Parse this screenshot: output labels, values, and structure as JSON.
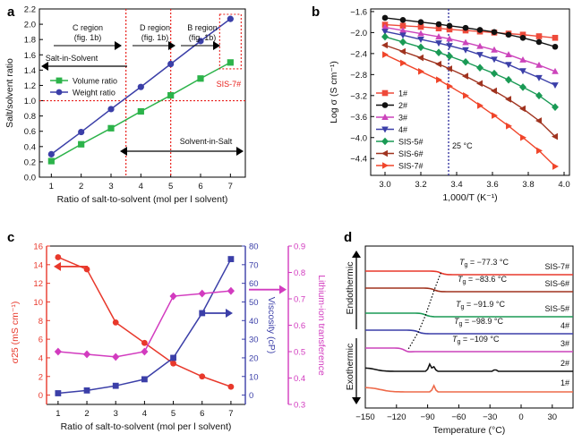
{
  "figure": {
    "panels": [
      "a",
      "b",
      "c",
      "d"
    ]
  },
  "chart_data": [
    {
      "panel": "a",
      "type": "line",
      "xlabel": "Ratio of salt-to-solvent (mol per l solvent)",
      "ylabel": "Salt/solvent ratio",
      "xlim": [
        0.6,
        7.5
      ],
      "ylim": [
        0,
        2.2
      ],
      "xticks": [
        1,
        2,
        3,
        4,
        5,
        6,
        7
      ],
      "yticks": [
        0,
        0.2,
        0.4,
        0.6,
        0.8,
        1.0,
        1.2,
        1.4,
        1.6,
        1.8,
        2.0,
        2.2
      ],
      "legend_position": "center-left",
      "series": [
        {
          "name": "Volume ratio",
          "color": "#2cb34a",
          "marker": "square",
          "x": [
            1,
            2,
            3,
            4,
            5,
            6,
            7
          ],
          "y": [
            0.21,
            0.43,
            0.64,
            0.86,
            1.07,
            1.29,
            1.5
          ]
        },
        {
          "name": "Weight ratio",
          "color": "#3b3fa8",
          "marker": "circle",
          "x": [
            1,
            2,
            3,
            4,
            5,
            6,
            7
          ],
          "y": [
            0.3,
            0.59,
            0.89,
            1.18,
            1.48,
            1.78,
            2.07
          ]
        }
      ],
      "annotations": {
        "c_region": "C region",
        "c_fig": "(fig. 1b)",
        "d_region": "D region",
        "d_fig": "(fig. 1b)",
        "b_region": "B region",
        "b_fig": "(fig. 1b)",
        "salt_in_solvent": "Salt-in-Solvent",
        "solvent_in_salt": "Solvent-in-Salt",
        "sis7": "SIS-7#"
      },
      "reference_lines": {
        "horizontal_y": 1.0,
        "vertical_x": [
          3.5,
          5.0
        ]
      }
    },
    {
      "panel": "b",
      "type": "line",
      "xlabel": "1,000/T (K⁻¹)",
      "ylabel": "Log σ (S cm⁻¹)",
      "xlim": [
        2.92,
        4.03
      ],
      "ylim": [
        -4.72,
        -1.55
      ],
      "xticks": [
        3.0,
        3.2,
        3.4,
        3.6,
        3.8,
        4.0
      ],
      "yticks": [
        -1.6,
        -2.0,
        -2.4,
        -2.8,
        -3.2,
        -3.6,
        -4.0,
        -4.4
      ],
      "legend_position": "bottom-left",
      "reference_line": {
        "x": 3.355,
        "label": "25 °C"
      },
      "series": [
        {
          "name": "1#",
          "color": "#ee4a3a",
          "marker": "square",
          "x": [
            3.0,
            3.1,
            3.2,
            3.3,
            3.36,
            3.45,
            3.53,
            3.61,
            3.69,
            3.77,
            3.86,
            3.95
          ],
          "y": [
            -1.85,
            -1.87,
            -1.89,
            -1.92,
            -1.94,
            -1.96,
            -1.98,
            -2.0,
            -2.02,
            -2.04,
            -2.07,
            -2.1
          ]
        },
        {
          "name": "2#",
          "color": "#111111",
          "marker": "circle",
          "x": [
            3.0,
            3.1,
            3.2,
            3.3,
            3.36,
            3.45,
            3.53,
            3.61,
            3.69,
            3.77,
            3.86,
            3.95
          ],
          "y": [
            -1.72,
            -1.76,
            -1.8,
            -1.84,
            -1.87,
            -1.91,
            -1.95,
            -1.99,
            -2.04,
            -2.1,
            -2.18,
            -2.27
          ]
        },
        {
          "name": "3#",
          "color": "#cc44bb",
          "marker": "triangle-up",
          "x": [
            3.0,
            3.1,
            3.2,
            3.3,
            3.36,
            3.45,
            3.53,
            3.61,
            3.69,
            3.77,
            3.86,
            3.95
          ],
          "y": [
            -1.9,
            -1.96,
            -2.02,
            -2.08,
            -2.12,
            -2.19,
            -2.26,
            -2.33,
            -2.42,
            -2.52,
            -2.62,
            -2.74
          ]
        },
        {
          "name": "4#",
          "color": "#3b3fa8",
          "marker": "triangle-down",
          "x": [
            3.0,
            3.1,
            3.2,
            3.3,
            3.36,
            3.45,
            3.53,
            3.61,
            3.69,
            3.77,
            3.86,
            3.95
          ],
          "y": [
            -1.98,
            -2.05,
            -2.13,
            -2.2,
            -2.25,
            -2.33,
            -2.42,
            -2.51,
            -2.61,
            -2.73,
            -2.86,
            -3.0
          ]
        },
        {
          "name": "SIS-5#",
          "color": "#1a9a55",
          "marker": "diamond",
          "x": [
            3.0,
            3.1,
            3.2,
            3.3,
            3.36,
            3.45,
            3.53,
            3.61,
            3.69,
            3.77,
            3.86,
            3.95
          ],
          "y": [
            -2.08,
            -2.18,
            -2.28,
            -2.38,
            -2.45,
            -2.56,
            -2.67,
            -2.78,
            -2.9,
            -3.04,
            -3.2,
            -3.42
          ]
        },
        {
          "name": "SIS-6#",
          "color": "#a0331f",
          "marker": "triangle-left",
          "x": [
            3.0,
            3.1,
            3.2,
            3.3,
            3.36,
            3.45,
            3.53,
            3.61,
            3.69,
            3.77,
            3.86,
            3.95
          ],
          "y": [
            -2.24,
            -2.36,
            -2.48,
            -2.6,
            -2.69,
            -2.83,
            -2.97,
            -3.11,
            -3.27,
            -3.45,
            -3.68,
            -3.98
          ]
        },
        {
          "name": "SIS-7#",
          "color": "#f0452a",
          "marker": "triangle-right",
          "x": [
            3.0,
            3.1,
            3.2,
            3.3,
            3.36,
            3.45,
            3.53,
            3.61,
            3.69,
            3.77,
            3.86,
            3.95
          ],
          "y": [
            -2.42,
            -2.58,
            -2.74,
            -2.9,
            -3.02,
            -3.2,
            -3.39,
            -3.58,
            -3.78,
            -4.0,
            -4.25,
            -4.55
          ]
        }
      ]
    },
    {
      "panel": "c",
      "type": "line",
      "xlabel": "Ratio of salt-to-solvent (mol per l solvent)",
      "xlim": [
        0.6,
        7.5
      ],
      "xticks": [
        1,
        2,
        3,
        4,
        5,
        6,
        7
      ],
      "axes": {
        "left": {
          "label": "σ25 (mS cm⁻¹)",
          "lim": [
            -1,
            16
          ],
          "ticks": [
            0,
            2,
            4,
            6,
            8,
            10,
            12,
            14,
            16
          ],
          "color": "#e8382b"
        },
        "right1": {
          "label": "Viscosity (cP)",
          "lim": [
            -5,
            80
          ],
          "ticks": [
            0,
            10,
            20,
            30,
            40,
            50,
            60,
            70,
            80
          ],
          "color": "#3b3fa8"
        },
        "right2": {
          "label": "Lithium-ion transference",
          "lim": [
            0.3,
            0.9
          ],
          "ticks": [
            0.3,
            0.4,
            0.5,
            0.6,
            0.7,
            0.8,
            0.9
          ],
          "color": "#d23bbf"
        }
      },
      "series": [
        {
          "name": "σ25",
          "axis": "left",
          "color": "#e8382b",
          "marker": "circle",
          "x": [
            1,
            2,
            3,
            4,
            5,
            6,
            7
          ],
          "y": [
            14.8,
            13.5,
            7.8,
            5.6,
            3.4,
            2.0,
            0.9
          ]
        },
        {
          "name": "Viscosity",
          "axis": "right1",
          "color": "#3b3fa8",
          "marker": "square",
          "x": [
            1,
            2,
            3,
            4,
            5,
            6,
            7
          ],
          "y": [
            1.0,
            2.5,
            5.0,
            8.5,
            20.0,
            44.0,
            73.0
          ]
        },
        {
          "name": "Lithium-ion transference",
          "axis": "right2",
          "color": "#d23bbf",
          "marker": "diamond",
          "x": [
            1,
            2,
            3,
            4,
            5,
            6,
            7
          ],
          "y": [
            0.5,
            0.49,
            0.48,
            0.5,
            0.71,
            0.72,
            0.73
          ]
        }
      ]
    },
    {
      "panel": "d",
      "type": "line",
      "xlabel": "Temperature (°C)",
      "xlim": [
        -150,
        50
      ],
      "xticks": [
        -150,
        -120,
        -90,
        -60,
        -30,
        0,
        30
      ],
      "side_labels": {
        "endothermic": "Endothermic",
        "exothermic": "Exothermic"
      },
      "traces": [
        {
          "name": "SIS-7#",
          "color": "#e8382b",
          "tg": "−77.3 °C"
        },
        {
          "name": "SIS-6#",
          "color": "#a0331f",
          "tg": "−83.6 °C"
        },
        {
          "name": "SIS-5#",
          "color": "#1a9a55",
          "tg": "−91.9 °C"
        },
        {
          "name": "4#",
          "color": "#3b3fa8",
          "tg": "−98.9 °C"
        },
        {
          "name": "3#",
          "color": "#cc44bb",
          "tg": "−109 °C"
        },
        {
          "name": "2#",
          "color": "#111111",
          "tg": ""
        },
        {
          "name": "1#",
          "color": "#ee6a4a",
          "tg": ""
        }
      ],
      "tg_symbol": "T",
      "tg_sub": "g",
      "tg_eq": " = "
    }
  ]
}
